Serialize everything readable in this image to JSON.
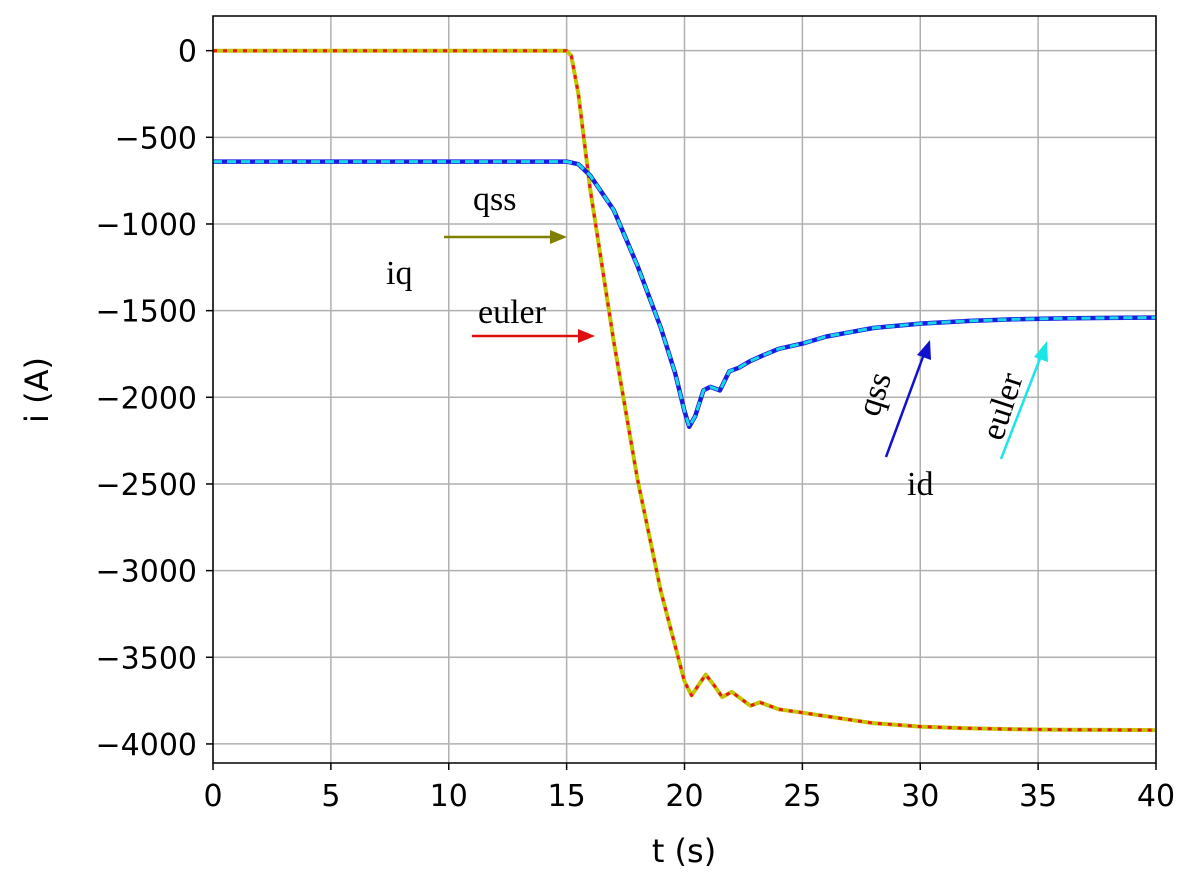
{
  "chart_data": {
    "type": "line",
    "xlabel": "t (s)",
    "ylabel": "i (A)",
    "xlim": [
      0,
      40
    ],
    "ylim": [
      -4110,
      200
    ],
    "xticks": [
      0,
      5,
      10,
      15,
      20,
      25,
      30,
      35,
      40
    ],
    "yticks": [
      0,
      -500,
      -1000,
      -1500,
      -2000,
      -2500,
      -3000,
      -3500,
      -4000
    ],
    "xtick_labels": [
      "0",
      "5",
      "10",
      "15",
      "20",
      "25",
      "30",
      "35",
      "40"
    ],
    "ytick_labels": [
      "0",
      "−500",
      "−1000",
      "−1500",
      "−2000",
      "−2500",
      "−3000",
      "−3500",
      "−4000"
    ],
    "grid": true,
    "colors": {
      "iq_qss": "#c4c400",
      "iq_euler": "#e8191a",
      "id_qss": "#1a1ae0",
      "id_euler": "#19d6e6",
      "arrow_olive": "#808000",
      "arrow_red": "#e01010",
      "arrow_blue": "#1010d0",
      "arrow_cyan": "#19e6e6"
    },
    "series": [
      {
        "x": [
          0,
          15,
          15.2,
          15.5,
          16,
          17,
          18,
          19,
          20,
          20.3,
          20.6,
          20.9,
          21.3,
          21.6,
          22,
          22.4,
          22.8,
          23.2,
          24,
          25,
          26,
          27,
          28,
          30,
          32,
          34,
          36,
          38,
          40
        ],
        "values": [
          0,
          0,
          -30,
          -250,
          -800,
          -1680,
          -2470,
          -3120,
          -3640,
          -3720,
          -3660,
          -3600,
          -3670,
          -3730,
          -3700,
          -3740,
          -3780,
          -3760,
          -3800,
          -3820,
          -3840,
          -3860,
          -3880,
          -3900,
          -3910,
          -3915,
          -3918,
          -3919,
          -3920
        ]
      },
      {
        "x": [
          0,
          15,
          15.2,
          15.5,
          16,
          17,
          18,
          19,
          20,
          20.3,
          20.6,
          20.9,
          21.3,
          21.6,
          22,
          22.4,
          22.8,
          23.2,
          24,
          25,
          26,
          27,
          28,
          30,
          32,
          34,
          36,
          38,
          40
        ],
        "values": [
          0,
          0,
          -30,
          -250,
          -800,
          -1680,
          -2470,
          -3120,
          -3640,
          -3720,
          -3660,
          -3600,
          -3670,
          -3730,
          -3700,
          -3740,
          -3780,
          -3760,
          -3800,
          -3820,
          -3840,
          -3860,
          -3880,
          -3900,
          -3910,
          -3915,
          -3918,
          -3919,
          -3920
        ]
      },
      {
        "x": [
          0,
          15,
          15.5,
          16,
          17,
          18,
          19,
          19.6,
          20,
          20.2,
          20.45,
          20.8,
          21.1,
          21.5,
          21.9,
          22.3,
          22.8,
          23.3,
          24,
          25,
          26,
          27,
          28,
          30,
          32,
          34,
          36,
          38,
          40
        ],
        "values": [
          -640,
          -640,
          -655,
          -720,
          -920,
          -1240,
          -1600,
          -1860,
          -2080,
          -2170,
          -2110,
          -1960,
          -1940,
          -1960,
          -1850,
          -1830,
          -1790,
          -1760,
          -1720,
          -1690,
          -1650,
          -1625,
          -1600,
          -1575,
          -1560,
          -1550,
          -1545,
          -1542,
          -1540
        ]
      },
      {
        "x": [
          0,
          15,
          15.5,
          16,
          17,
          18,
          19,
          19.6,
          20,
          20.2,
          20.45,
          20.8,
          21.1,
          21.5,
          21.9,
          22.3,
          22.8,
          23.3,
          24,
          25,
          26,
          27,
          28,
          30,
          32,
          34,
          36,
          38,
          40
        ],
        "values": [
          -640,
          -640,
          -655,
          -720,
          -920,
          -1240,
          -1600,
          -1860,
          -2080,
          -2170,
          -2110,
          -1960,
          -1940,
          -1960,
          -1850,
          -1830,
          -1790,
          -1760,
          -1720,
          -1690,
          -1650,
          -1625,
          -1600,
          -1575,
          -1560,
          -1550,
          -1545,
          -1542,
          -1540
        ]
      }
    ],
    "annotations": {
      "qss_top": "qss",
      "iq": "iq",
      "euler_left": "euler",
      "qss_right": "qss",
      "euler_right": "euler",
      "id": "id"
    }
  }
}
